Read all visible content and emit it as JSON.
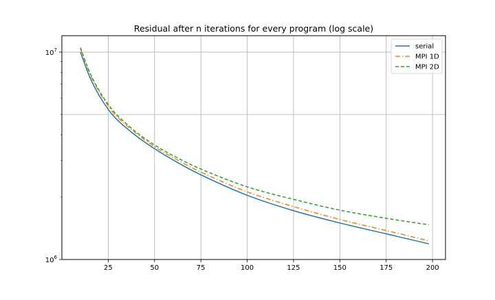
{
  "chart_data": {
    "type": "line",
    "title": "Residual after n iterations for every program (log scale)",
    "xlabel": "",
    "ylabel": "",
    "xlim": [
      0,
      207
    ],
    "ylim": [
      1000000,
      12000000
    ],
    "yscale": "log",
    "grid": true,
    "legend_position": "top-right",
    "x_ticks": [
      25,
      50,
      75,
      100,
      125,
      150,
      175,
      200
    ],
    "x_tick_labels": [
      "25",
      "50",
      "75",
      "100",
      "125",
      "150",
      "175",
      "200"
    ],
    "y_major_ticks": [
      1000000,
      10000000
    ],
    "y_tick_labels": [
      {
        "base": "10",
        "exp": "6"
      },
      {
        "base": "10",
        "exp": "7"
      }
    ],
    "y_minor_ticks": [
      2000000,
      3000000,
      4000000,
      5000000,
      6000000,
      7000000,
      8000000,
      9000000
    ],
    "x": [
      10,
      15,
      20,
      25,
      30,
      40,
      50,
      60,
      75,
      100,
      125,
      150,
      175,
      198
    ],
    "series": [
      {
        "name": "serial",
        "color": "#1f77b4",
        "dash": "solid",
        "values": [
          10000000,
          7600000,
          6200000,
          5300000,
          4700000,
          3950000,
          3420000,
          3020000,
          2560000,
          2040000,
          1720000,
          1500000,
          1330000,
          1190000
        ]
      },
      {
        "name": "MPI 1D",
        "color": "#ff7f0e",
        "dash": "dashdot",
        "values": [
          10400000,
          7900000,
          6450000,
          5500000,
          4850000,
          4060000,
          3500000,
          3100000,
          2640000,
          2120000,
          1800000,
          1560000,
          1380000,
          1230000
        ]
      },
      {
        "name": "MPI 2D",
        "color": "#2ca02c",
        "dash": "dashed",
        "values": [
          10500000,
          8000000,
          6550000,
          5600000,
          4950000,
          4120000,
          3570000,
          3170000,
          2730000,
          2240000,
          1950000,
          1730000,
          1580000,
          1470000
        ]
      }
    ]
  }
}
